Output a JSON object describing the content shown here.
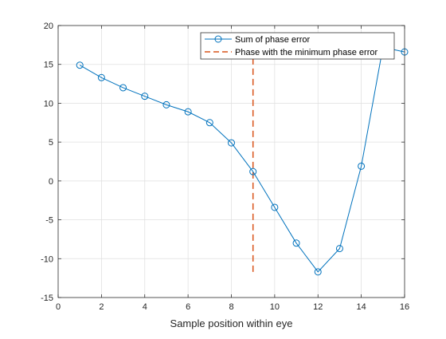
{
  "chart_data": {
    "type": "line",
    "title": "",
    "xlabel": "Sample position within eye",
    "ylabel": "",
    "xlim": [
      0,
      16
    ],
    "ylim": [
      -15,
      20
    ],
    "xticks": [
      0,
      2,
      4,
      6,
      8,
      10,
      12,
      14,
      16
    ],
    "yticks": [
      -15,
      -10,
      -5,
      0,
      5,
      10,
      15,
      20
    ],
    "grid": true,
    "legend_position": "top-right",
    "series": [
      {
        "name": "Sum of phase error",
        "style": "solid line with circle markers",
        "color": "#0072BD",
        "x": [
          1,
          2,
          3,
          4,
          5,
          6,
          7,
          8,
          9,
          10,
          11,
          12,
          13,
          14,
          15,
          16
        ],
        "y": [
          14.9,
          13.3,
          12.0,
          10.9,
          9.8,
          8.9,
          7.5,
          4.9,
          1.2,
          -3.4,
          -8.0,
          -11.7,
          -8.7,
          1.9,
          17.2,
          16.6
        ]
      },
      {
        "name": "Phase with the minimum phase error",
        "style": "dashed line",
        "color": "#D95319",
        "x": [
          9,
          9
        ],
        "y": [
          -11.7,
          17.2
        ]
      }
    ]
  }
}
